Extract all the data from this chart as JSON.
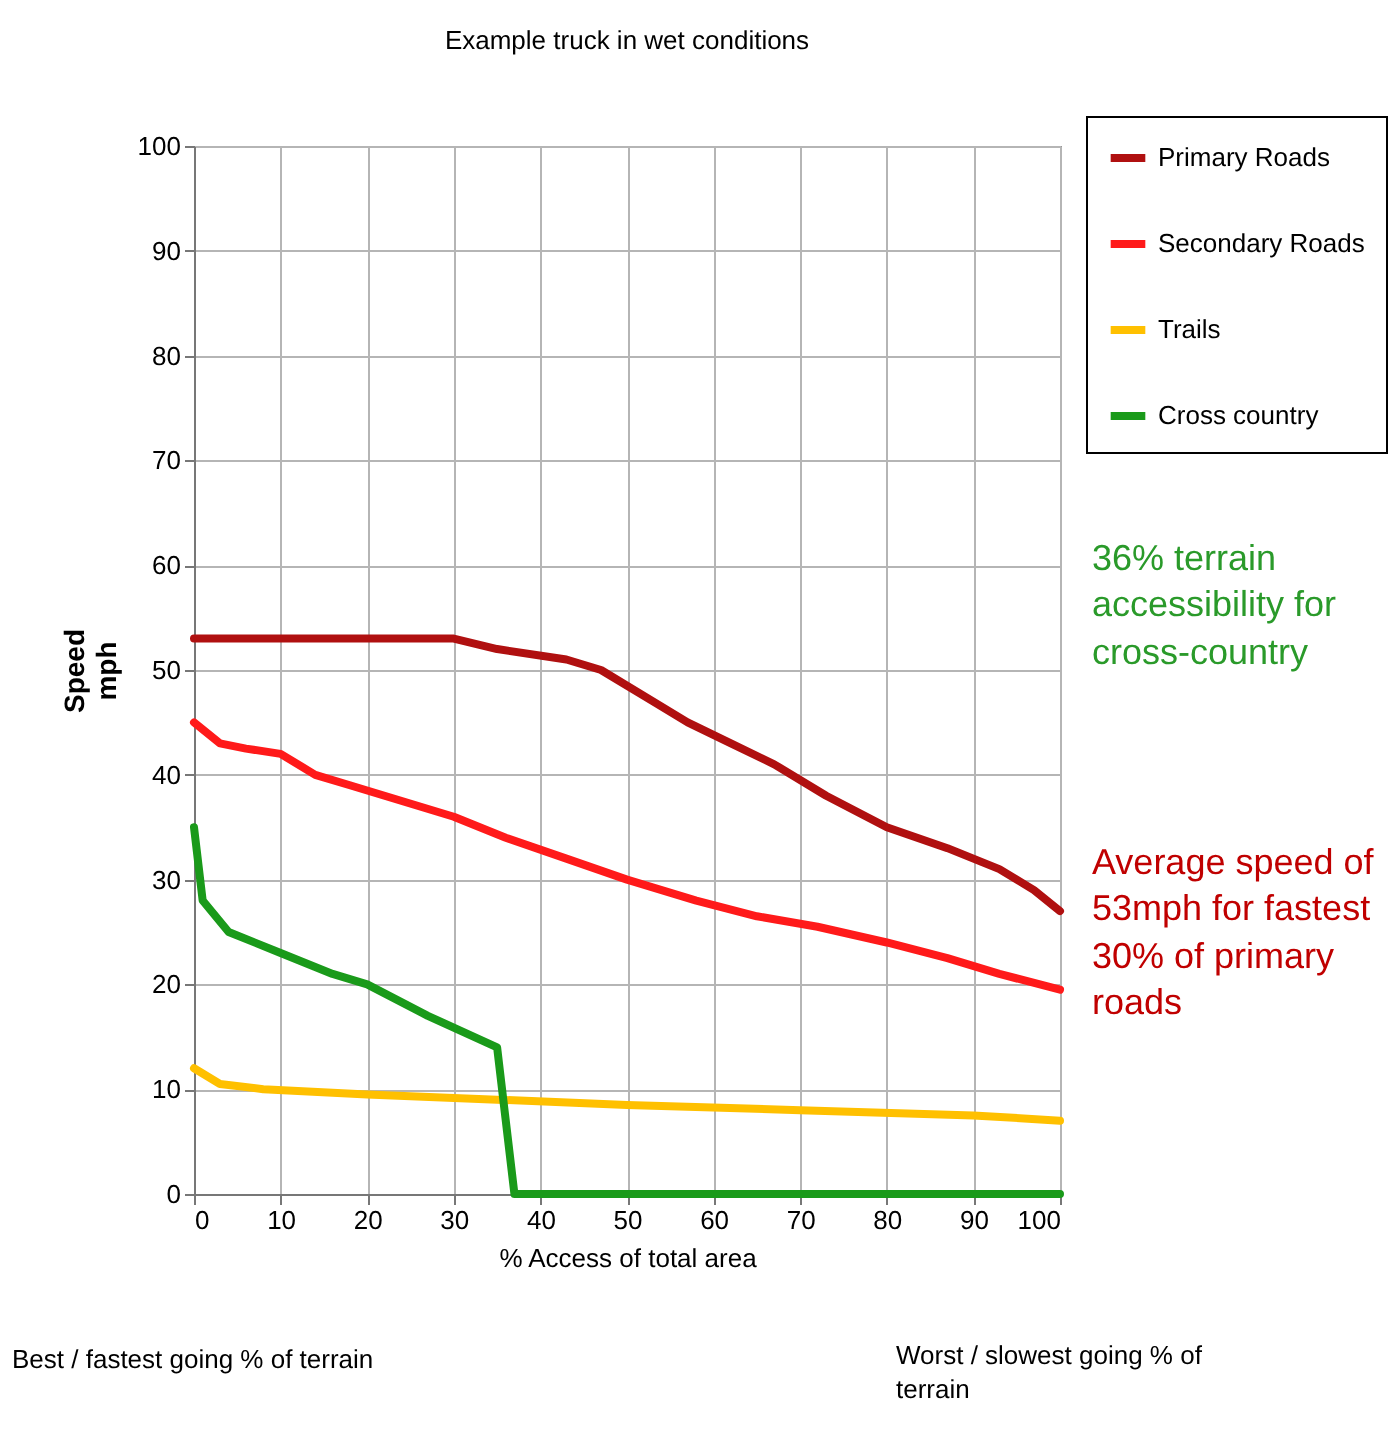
{
  "chart_data": {
    "type": "line",
    "title": "Example truck in wet conditions",
    "xlabel": "% Access of total area",
    "ylabel": "Speed\nmph",
    "xlim": [
      0,
      100
    ],
    "xticks": [
      0,
      10,
      20,
      30,
      40,
      50,
      60,
      70,
      80,
      90,
      100
    ],
    "ylim": [
      0,
      100
    ],
    "yticks": [
      0,
      10,
      20,
      30,
      40,
      50,
      60,
      70,
      80,
      90,
      100
    ],
    "grid": true,
    "legend": "top right",
    "marker": "none",
    "line_style": "solid",
    "series": [
      {
        "name": "Primary Roads",
        "color": "#b01010",
        "x": [
          0,
          10,
          20,
          30,
          35,
          43,
          47,
          53,
          57,
          62,
          67,
          73,
          80,
          87,
          93,
          97,
          100
        ],
        "values": [
          53,
          53,
          53,
          53,
          52,
          51,
          50,
          47,
          45,
          43,
          41,
          38,
          35,
          33,
          31,
          29,
          27
        ]
      },
      {
        "name": "Secondary Roads",
        "color": "#ff1a1a",
        "x": [
          0,
          3,
          6,
          10,
          14,
          18,
          22,
          30,
          36,
          43,
          50,
          58,
          65,
          72,
          80,
          87,
          93,
          100
        ],
        "values": [
          45,
          43,
          42.5,
          42,
          40,
          39,
          38,
          36,
          34,
          32,
          30,
          28,
          26.5,
          25.5,
          24,
          22.5,
          21,
          19.5
        ]
      },
      {
        "name": "Trails",
        "color": "#ffc000",
        "x": [
          0,
          3,
          8,
          20,
          35,
          50,
          70,
          90,
          100
        ],
        "values": [
          12,
          10.5,
          10,
          9.5,
          9,
          8.5,
          8,
          7.5,
          7
        ]
      },
      {
        "name": "Cross country",
        "color": "#1a9a1a",
        "x": [
          0,
          1,
          4,
          10,
          16,
          20,
          27,
          35,
          37,
          100
        ],
        "values": [
          35,
          28,
          25,
          23,
          21,
          20,
          17,
          14,
          0,
          0
        ]
      }
    ],
    "annotations": [
      "36% terrain accessibility for cross-country",
      "Average speed of 53mph for fastest 30% of primary roads",
      "Best / fastest going % of terrain",
      "Worst / slowest going % of terrain"
    ]
  }
}
